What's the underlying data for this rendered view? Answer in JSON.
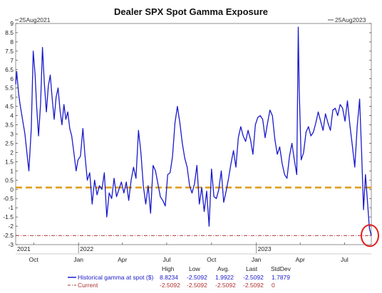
{
  "chart_data": {
    "type": "line",
    "title": "Dealer SPX Spot Gamma Exposure",
    "range_start_label": "25Aug2021",
    "range_end_label": "25Aug2023",
    "x_range": [
      "2021-08-25",
      "2023-08-25"
    ],
    "ylim": [
      -3,
      9
    ],
    "y_ticks": [
      "9",
      "8.5",
      "8",
      "7.5",
      "7",
      "6.5",
      "6",
      "5.5",
      "5",
      "4.5",
      "4",
      "3.5",
      "3",
      "2.5",
      "2",
      "1.5",
      "1",
      "0.5",
      "0",
      "-0.5",
      "-1",
      "-1.5",
      "-2",
      "-2.5",
      "-3"
    ],
    "x_tick_labels": [
      {
        "date": "2021-10-01",
        "label": "Oct"
      },
      {
        "date": "2022-01-01",
        "label": "Jan"
      },
      {
        "date": "2022-04-01",
        "label": "Apr"
      },
      {
        "date": "2022-07-01",
        "label": "Jul"
      },
      {
        "date": "2022-10-01",
        "label": "Oct"
      },
      {
        "date": "2023-01-01",
        "label": "Jan"
      },
      {
        "date": "2023-04-01",
        "label": "Apr"
      },
      {
        "date": "2023-07-01",
        "label": "Jul"
      }
    ],
    "year_labels": [
      {
        "date": "2021-08-27",
        "label": "2021"
      },
      {
        "date": "2022-01-01",
        "label": "2022"
      },
      {
        "date": "2023-01-01",
        "label": "2023"
      }
    ],
    "reference_line": {
      "y": 0.1,
      "color": "#e0a020",
      "style": "dashed"
    },
    "colors": {
      "historical": "#1a1acc",
      "current": "#b03030",
      "highlight_circle": "#e02020"
    },
    "series": [
      {
        "name": "Historical gamma at spot ($)",
        "x": [
          "2021-08-25",
          "2021-08-27",
          "2021-08-31",
          "2021-09-03",
          "2021-09-08",
          "2021-09-13",
          "2021-09-17",
          "2021-09-21",
          "2021-09-26",
          "2021-09-30",
          "2021-10-04",
          "2021-10-07",
          "2021-10-11",
          "2021-10-15",
          "2021-10-19",
          "2021-10-23",
          "2021-10-27",
          "2021-10-31",
          "2021-11-04",
          "2021-11-08",
          "2021-11-12",
          "2021-11-16",
          "2021-11-20",
          "2021-11-24",
          "2021-11-28",
          "2021-12-02",
          "2021-12-06",
          "2021-12-10",
          "2021-12-14",
          "2021-12-18",
          "2021-12-22",
          "2021-12-27",
          "2021-12-31",
          "2022-01-05",
          "2022-01-10",
          "2022-01-14",
          "2022-01-19",
          "2022-01-24",
          "2022-01-29",
          "2022-02-03",
          "2022-02-08",
          "2022-02-13",
          "2022-02-18",
          "2022-02-23",
          "2022-02-28",
          "2022-03-05",
          "2022-03-10",
          "2022-03-15",
          "2022-03-20",
          "2022-03-25",
          "2022-03-30",
          "2022-04-04",
          "2022-04-09",
          "2022-04-14",
          "2022-04-19",
          "2022-04-24",
          "2022-04-29",
          "2022-05-04",
          "2022-05-09",
          "2022-05-14",
          "2022-05-19",
          "2022-05-24",
          "2022-05-29",
          "2022-06-03",
          "2022-06-08",
          "2022-06-13",
          "2022-06-18",
          "2022-06-23",
          "2022-06-28",
          "2022-07-03",
          "2022-07-08",
          "2022-07-13",
          "2022-07-18",
          "2022-07-23",
          "2022-07-28",
          "2022-08-02",
          "2022-08-07",
          "2022-08-12",
          "2022-08-17",
          "2022-08-22",
          "2022-08-27",
          "2022-09-01",
          "2022-09-06",
          "2022-09-11",
          "2022-09-16",
          "2022-09-21",
          "2022-09-26",
          "2022-10-01",
          "2022-10-06",
          "2022-10-11",
          "2022-10-16",
          "2022-10-21",
          "2022-10-26",
          "2022-10-31",
          "2022-11-05",
          "2022-11-10",
          "2022-11-15",
          "2022-11-20",
          "2022-11-25",
          "2022-11-30",
          "2022-12-05",
          "2022-12-10",
          "2022-12-15",
          "2022-12-20",
          "2022-12-25",
          "2022-12-30",
          "2023-01-04",
          "2023-01-09",
          "2023-01-14",
          "2023-01-19",
          "2023-01-24",
          "2023-01-29",
          "2023-02-03",
          "2023-02-08",
          "2023-02-13",
          "2023-02-18",
          "2023-02-23",
          "2023-02-28",
          "2023-03-05",
          "2023-03-10",
          "2023-03-15",
          "2023-03-20",
          "2023-03-25",
          "2023-03-28",
          "2023-03-30",
          "2023-04-03",
          "2023-04-08",
          "2023-04-13",
          "2023-04-18",
          "2023-04-23",
          "2023-04-28",
          "2023-05-03",
          "2023-05-08",
          "2023-05-13",
          "2023-05-18",
          "2023-05-23",
          "2023-05-28",
          "2023-06-02",
          "2023-06-07",
          "2023-06-12",
          "2023-06-17",
          "2023-06-22",
          "2023-06-27",
          "2023-07-02",
          "2023-07-07",
          "2023-07-12",
          "2023-07-17",
          "2023-07-22",
          "2023-07-27",
          "2023-08-01",
          "2023-08-05",
          "2023-08-09",
          "2023-08-13",
          "2023-08-17",
          "2023-08-21",
          "2023-08-25"
        ],
        "values": [
          5.7,
          6.4,
          5.2,
          4.6,
          3.8,
          3.0,
          2.0,
          1.0,
          3.3,
          7.5,
          6.2,
          4.5,
          2.9,
          4.6,
          7.7,
          5.7,
          4.2,
          5.6,
          6.2,
          4.9,
          3.8,
          5.0,
          5.5,
          4.3,
          3.5,
          4.6,
          3.8,
          4.2,
          3.3,
          2.9,
          2.1,
          1.0,
          1.6,
          1.8,
          3.3,
          1.9,
          0.5,
          0.9,
          -0.8,
          0.5,
          -0.3,
          0.2,
          0.0,
          0.9,
          -1.5,
          -0.2,
          -0.5,
          0.6,
          -0.4,
          0.0,
          0.4,
          -0.2,
          0.4,
          -0.6,
          0.5,
          1.2,
          0.6,
          3.2,
          2.0,
          0.2,
          -0.8,
          0.2,
          -1.3,
          1.3,
          1.0,
          0.3,
          -0.4,
          -0.6,
          -0.9,
          0.8,
          0.9,
          1.8,
          3.6,
          4.5,
          3.6,
          2.5,
          1.7,
          1.2,
          0.2,
          -0.2,
          0.3,
          1.3,
          -0.8,
          0.1,
          -1.2,
          -0.1,
          -2.0,
          1.1,
          -0.4,
          -0.5,
          0.0,
          1.0,
          -0.7,
          -0.1,
          0.6,
          1.4,
          2.1,
          1.2,
          2.8,
          3.4,
          2.9,
          2.6,
          3.2,
          2.7,
          1.9,
          3.5,
          3.9,
          4.0,
          3.8,
          2.8,
          3.6,
          4.3,
          4.0,
          2.7,
          1.9,
          2.3,
          1.4,
          0.8,
          0.6,
          1.8,
          2.5,
          1.6,
          0.8,
          8.8,
          5.5,
          1.6,
          2.0,
          3.1,
          3.4,
          2.9,
          3.1,
          3.6,
          4.2,
          3.7,
          3.2,
          4.1,
          3.6,
          3.2,
          4.3,
          4.4,
          4.0,
          4.6,
          4.4,
          3.7,
          4.8,
          3.5,
          2.4,
          1.2,
          3.4,
          4.9,
          2.1,
          -1.1,
          0.8,
          -0.6,
          -2.1,
          -2.5092
        ]
      },
      {
        "name": "Current",
        "values": [
          -2.5092
        ]
      }
    ],
    "stats_table": {
      "headers": [
        "High",
        "Low",
        "Avg.",
        "Last",
        "StdDev"
      ],
      "rows": [
        {
          "name": "Historical gamma at spot ($)",
          "values": [
            "8.8234",
            "-2.5092",
            "1.9922",
            "-2.5092",
            "1.7879"
          ]
        },
        {
          "name": "Current",
          "values": [
            "-2.5092",
            "-2.5092",
            "-2.5092",
            "-2.5092",
            "0"
          ]
        }
      ]
    }
  }
}
